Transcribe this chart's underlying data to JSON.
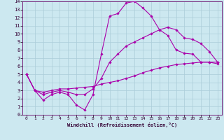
{
  "xlabel": "Windchill (Refroidissement éolien,°C)",
  "bg_color": "#cce8f0",
  "grid_color": "#aaccd8",
  "line_color": "#aa00aa",
  "spine_color": "#660066",
  "xlim": [
    -0.5,
    23.5
  ],
  "ylim": [
    0,
    14
  ],
  "xticks": [
    0,
    1,
    2,
    3,
    4,
    5,
    6,
    7,
    8,
    9,
    10,
    11,
    12,
    13,
    14,
    15,
    16,
    17,
    18,
    19,
    20,
    21,
    22,
    23
  ],
  "yticks": [
    0,
    1,
    2,
    3,
    4,
    5,
    6,
    7,
    8,
    9,
    10,
    11,
    12,
    13,
    14
  ],
  "series": [
    [
      5.0,
      3.0,
      1.8,
      2.5,
      2.8,
      2.5,
      1.2,
      0.6,
      2.5,
      7.5,
      12.2,
      12.5,
      13.8,
      14.0,
      13.2,
      12.2,
      10.5,
      9.8,
      8.0,
      7.6,
      7.5,
      6.5,
      6.5,
      6.3
    ],
    [
      5.0,
      3.0,
      2.5,
      2.8,
      3.0,
      2.8,
      2.5,
      2.5,
      3.2,
      4.5,
      6.5,
      7.5,
      8.5,
      9.0,
      9.5,
      10.0,
      10.5,
      10.8,
      10.5,
      9.5,
      9.3,
      8.8,
      7.8,
      6.5
    ],
    [
      5.0,
      3.0,
      2.8,
      3.0,
      3.2,
      3.2,
      3.3,
      3.4,
      3.5,
      3.8,
      4.0,
      4.2,
      4.5,
      4.8,
      5.2,
      5.5,
      5.8,
      6.0,
      6.2,
      6.3,
      6.4,
      6.5,
      6.5,
      6.5
    ]
  ],
  "markersize": 1.8,
  "linewidth": 0.8,
  "tick_fontsize": 4.5,
  "xlabel_fontsize": 5.0
}
